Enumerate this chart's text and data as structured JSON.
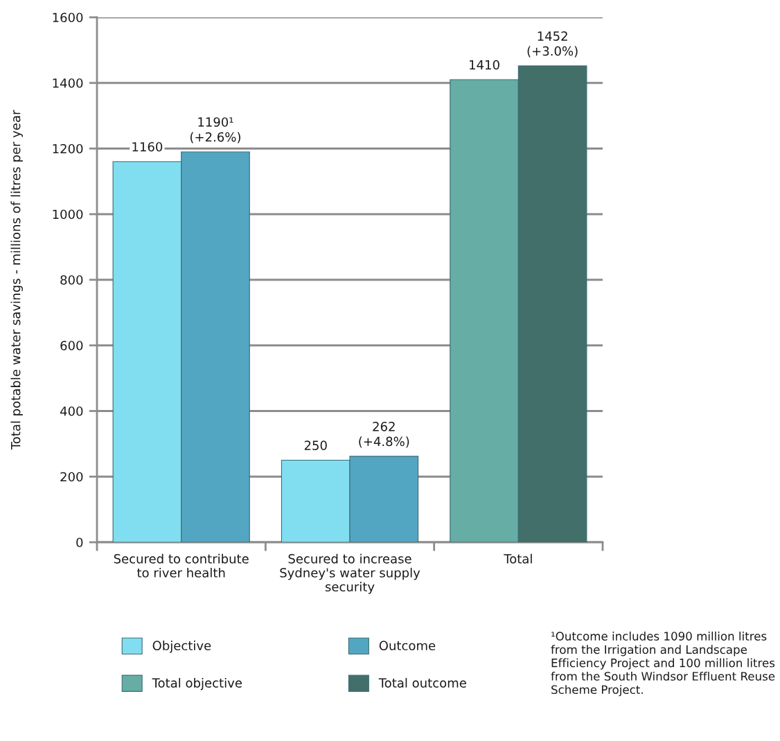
{
  "chart_data": {
    "type": "bar",
    "ylabel": "Total potable water savings - millions of litres per year",
    "categories": [
      "Secured to contribute\nto river health",
      "Secured to increase\nSydney's water supply\nsecurity",
      "Total"
    ],
    "series": [
      {
        "name": "Objective",
        "color": "#80def0",
        "values": [
          1160,
          250,
          null
        ],
        "value_labels": [
          "1160",
          "250",
          null
        ]
      },
      {
        "name": "Outcome",
        "color": "#52a6c2",
        "values": [
          1190,
          262,
          null
        ],
        "value_labels": [
          "1190¹\n(+2.6%)",
          "262\n(+4.8%)",
          null
        ]
      },
      {
        "name": "Total objective",
        "color": "#66ada5",
        "values": [
          null,
          null,
          1410
        ],
        "value_labels": [
          null,
          null,
          "1410"
        ]
      },
      {
        "name": "Total outcome",
        "color": "#426f6a",
        "values": [
          null,
          null,
          1452
        ],
        "value_labels": [
          null,
          null,
          "1452\n(+3.0%)"
        ]
      }
    ],
    "ylim": [
      0,
      1600
    ],
    "yticks": [
      0,
      200,
      400,
      600,
      800,
      1000,
      1200,
      1400,
      1600
    ],
    "grid": "y",
    "legend": "bottom",
    "annotations": [
      "¹Outcome includes 1090 million litres from the Irrigation and Landscape Efficiency Project and 100 million litres from the South Windsor Effluent Reuse Scheme Project."
    ]
  }
}
